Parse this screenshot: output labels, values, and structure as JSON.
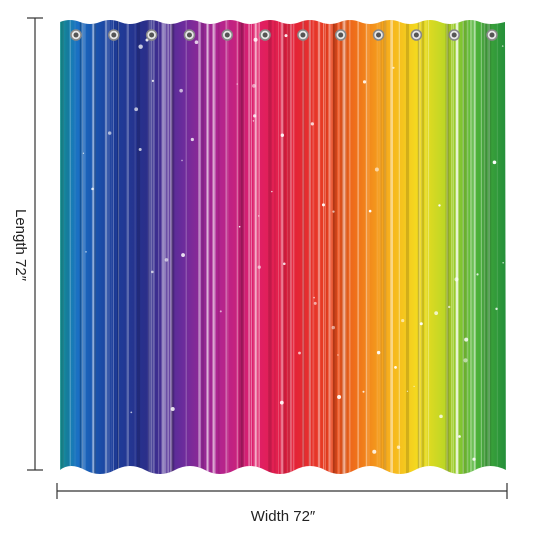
{
  "dimensions": {
    "length": "Length 72″",
    "width": "Width 72″"
  }
}
